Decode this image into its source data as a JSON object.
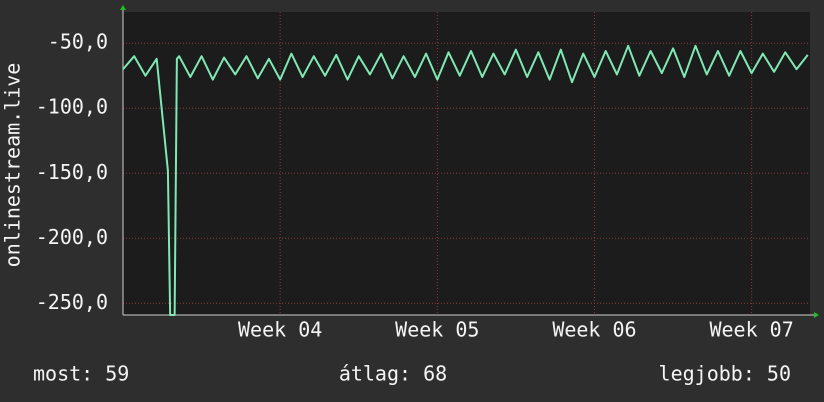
{
  "chart_data": {
    "type": "line",
    "y_label": "onlinestream.live",
    "x": [
      0,
      0.5,
      1,
      1.5,
      2,
      2.1,
      2.3,
      2.4,
      2.5,
      3,
      3.5,
      4,
      4.5,
      5,
      5.5,
      6,
      6.5,
      7,
      7.5,
      8,
      8.5,
      9,
      9.5,
      10,
      10.5,
      11,
      11.5,
      12,
      12.5,
      13,
      13.5,
      14,
      14.5,
      15,
      15.5,
      16,
      16.5,
      17,
      17.5,
      18,
      18.5,
      19,
      19.5,
      20,
      20.5,
      21,
      21.5,
      22,
      22.5,
      23,
      23.5,
      24,
      24.5,
      25,
      25.5,
      26,
      26.5,
      27,
      27.5,
      28,
      28.5,
      29,
      29.5,
      30,
      30.5
    ],
    "series": [
      {
        "color": "#7fe8b4",
        "values": [
          -70,
          -60,
          -75,
          -62,
          -148,
          -259,
          -259,
          -62,
          -60,
          -76,
          -60,
          -78,
          -61,
          -74,
          -60,
          -77,
          -62,
          -78,
          -58,
          -76,
          -60,
          -75,
          -59,
          -78,
          -60,
          -74,
          -58,
          -77,
          -60,
          -76,
          -58,
          -78,
          -57,
          -75,
          -56,
          -76,
          -58,
          -74,
          -55,
          -76,
          -57,
          -78,
          -55,
          -80,
          -58,
          -76,
          -56,
          -74,
          -52,
          -75,
          -56,
          -73,
          -54,
          -76,
          -52,
          -74,
          -56,
          -75,
          -56,
          -73,
          -58,
          -72,
          -57,
          -70,
          -59
        ]
      }
    ],
    "xlim": [
      0,
      30.6
    ],
    "xticks": [
      {
        "value": 7,
        "label": "Week 04"
      },
      {
        "value": 14,
        "label": "Week 05"
      },
      {
        "value": 21,
        "label": "Week 06"
      },
      {
        "value": 28,
        "label": "Week 07"
      }
    ],
    "ylim": [
      -259,
      -26
    ],
    "yticks": [
      {
        "value": -50,
        "label": "-50,0"
      },
      {
        "value": -100,
        "label": "-100,0"
      },
      {
        "value": -150,
        "label": "-150,0"
      },
      {
        "value": -200,
        "label": "-200,0"
      },
      {
        "value": -250,
        "label": "-250,0"
      }
    ],
    "grid": true,
    "annotations": [
      "most: 59",
      "átlag: 68",
      "legjobb: 50"
    ]
  }
}
